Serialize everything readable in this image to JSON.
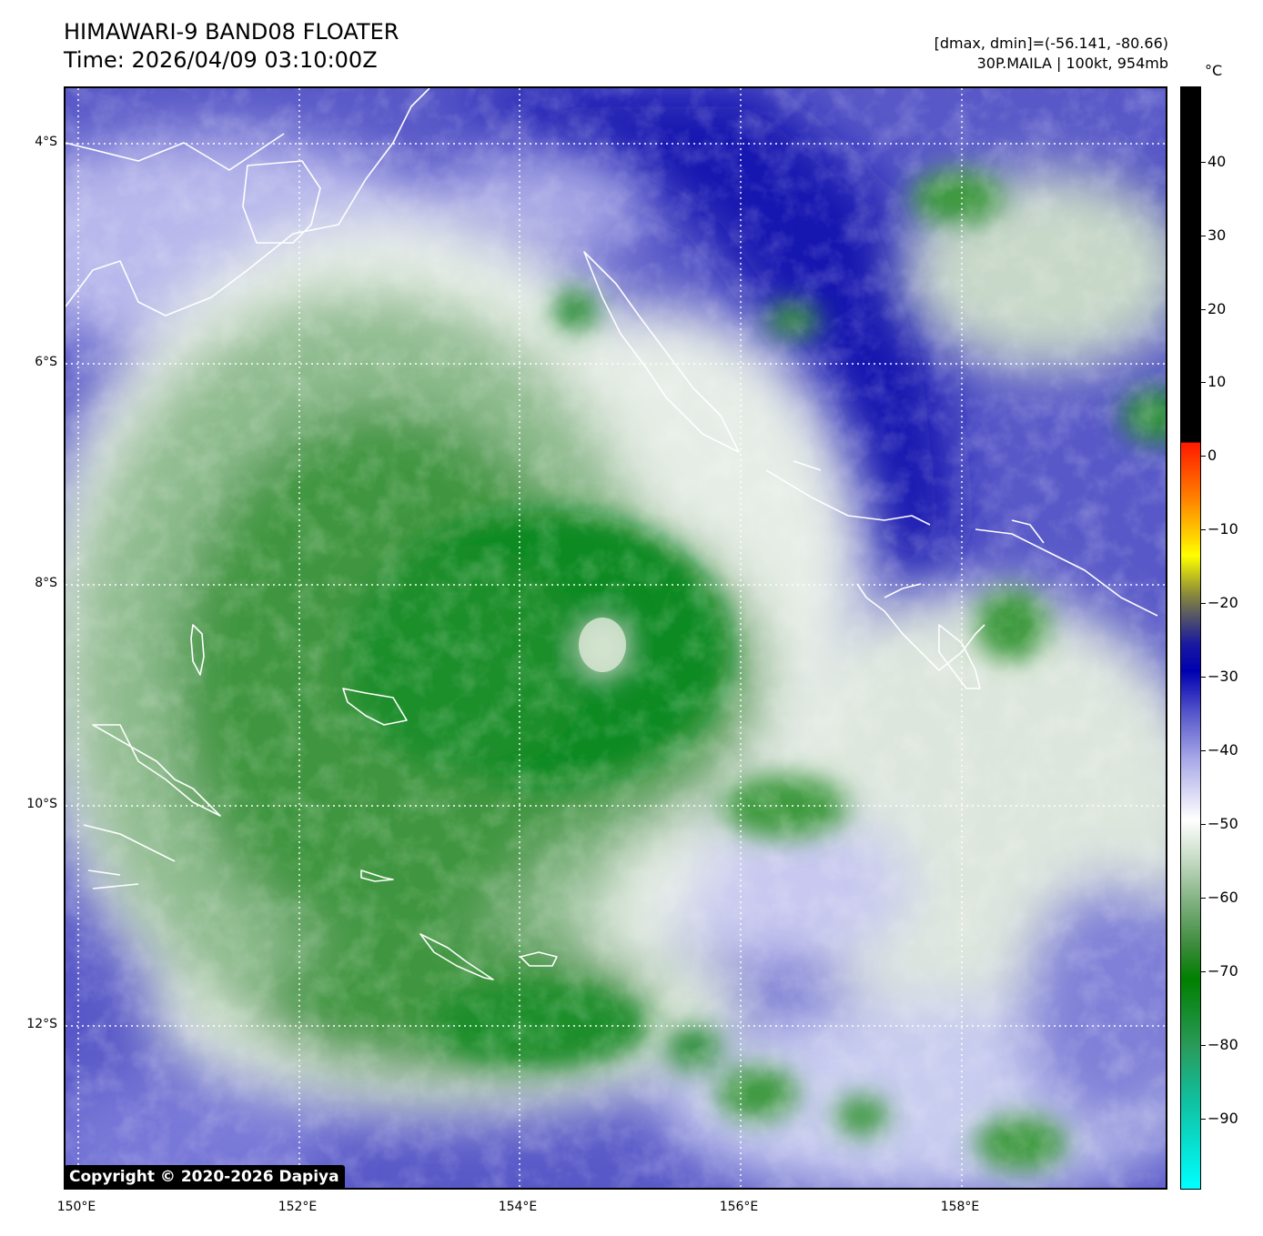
{
  "header": {
    "title": "HIMAWARI-9 BAND08 FLOATER",
    "time": "Time: 2026/04/09 03:10:00Z",
    "range": "[dmax, dmin]=(-56.141, -80.66)",
    "storm": "30P.MAILA | 100kt, 954mb"
  },
  "map": {
    "lat_labels": [
      "4°S",
      "6°S",
      "8°S",
      "10°S",
      "12°S"
    ],
    "lon_labels": [
      "150°E",
      "152°E",
      "154°E",
      "156°E",
      "158°E"
    ]
  },
  "colorbar": {
    "unit": "°C",
    "labels": [
      "40",
      "30",
      "20",
      "10",
      "0",
      "−10",
      "−20",
      "−30",
      "−40",
      "−50",
      "−60",
      "−70",
      "−80",
      "−90"
    ]
  },
  "copyright": "Copyright © 2020-2026 Dapiya"
}
